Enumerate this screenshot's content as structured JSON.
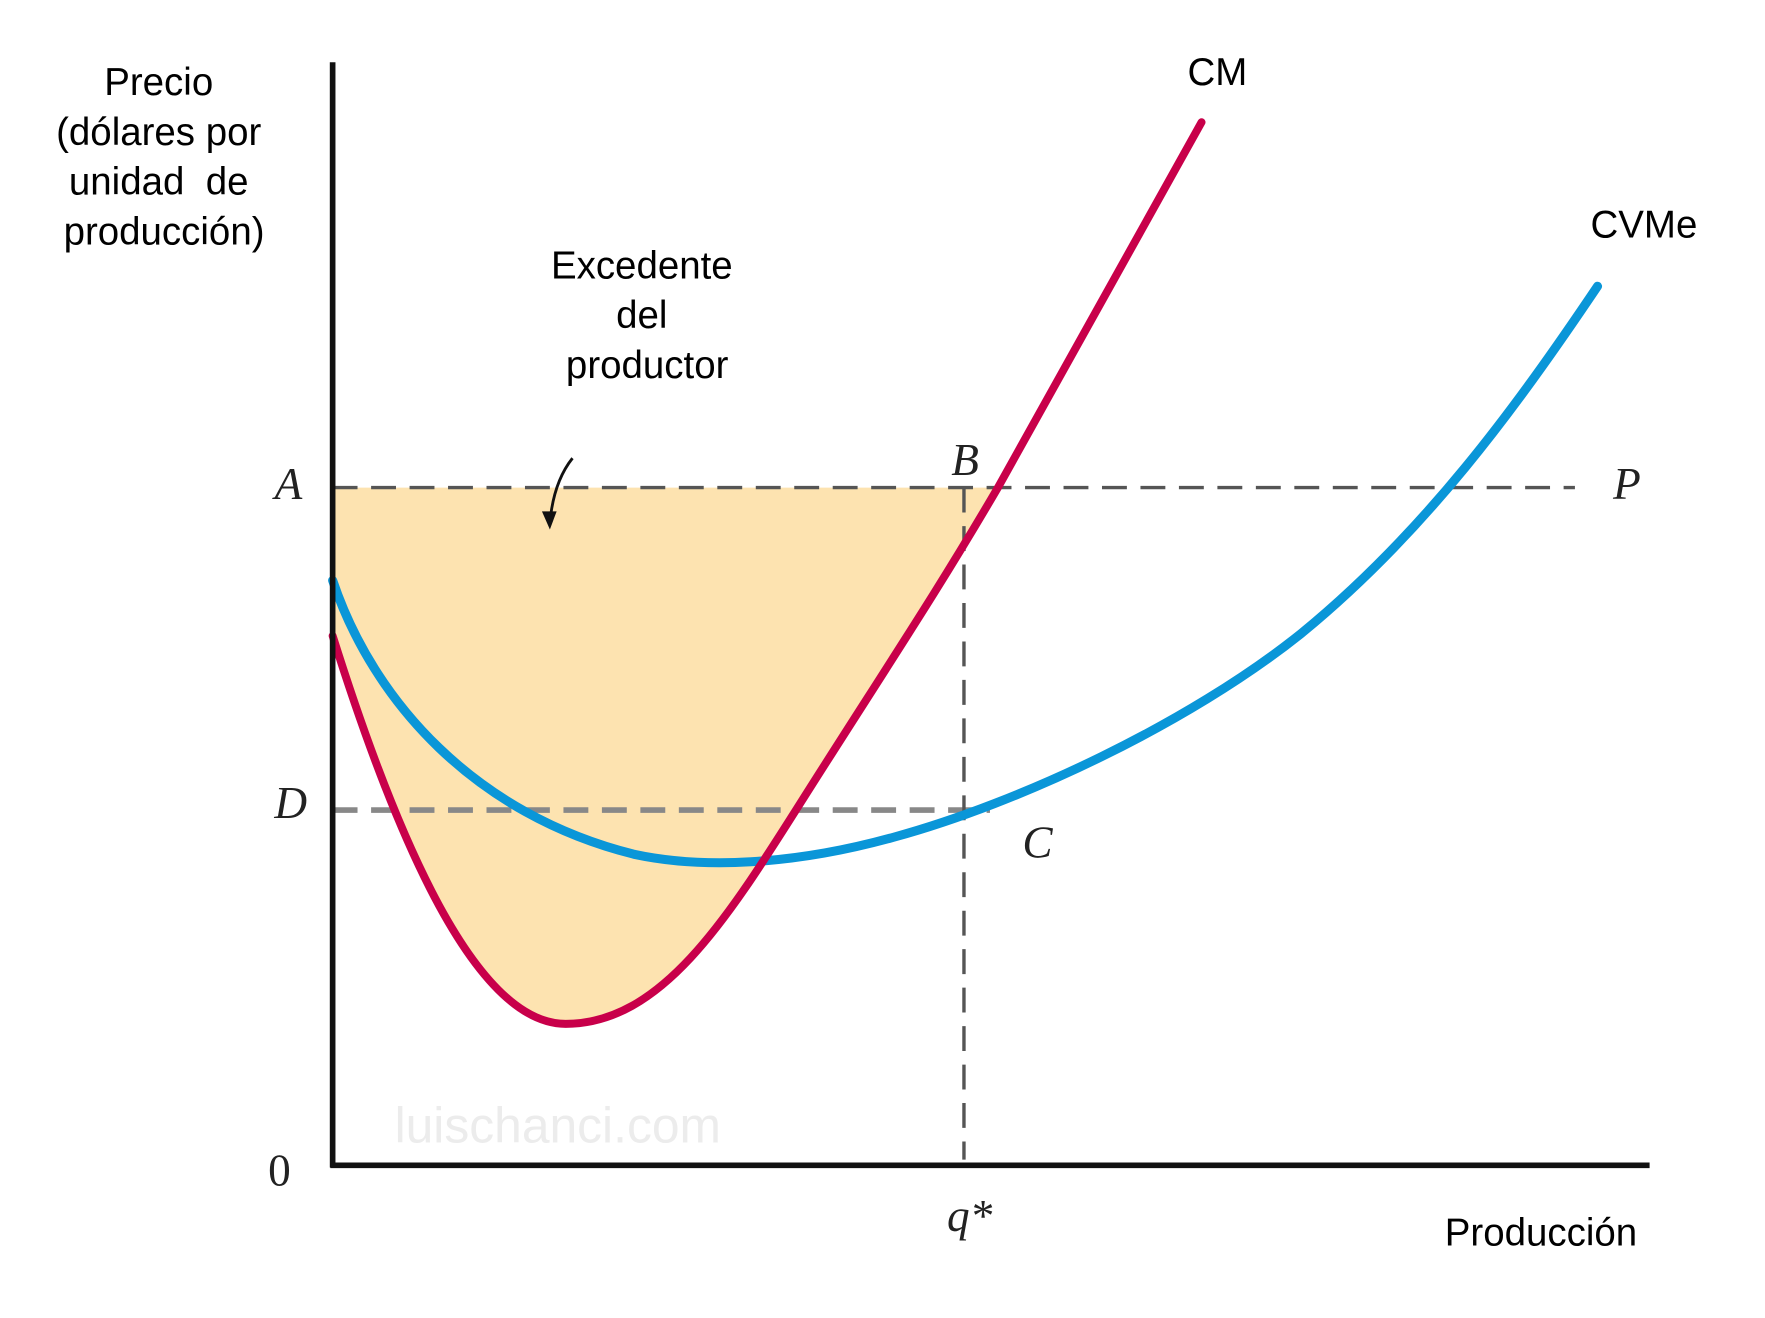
{
  "axes": {
    "y_label_lines": [
      "Precio",
      "(dólares por",
      "unidad  de",
      "producción)"
    ],
    "x_label": "Producción",
    "origin": "0"
  },
  "annotation": {
    "lines": [
      "Excedente",
      "del",
      "productor"
    ]
  },
  "curves": {
    "mc_label": "CM",
    "avc_label": "CVMe"
  },
  "points": {
    "A": "A",
    "B": "B",
    "P": "P",
    "D": "D",
    "C": "C",
    "q": "q*"
  },
  "watermark": "luischanci.com",
  "colors": {
    "mc": "#c8004a",
    "avc": "#0a96d8",
    "surplus_fill": "#fde3b0",
    "dashes": "#555555"
  }
}
